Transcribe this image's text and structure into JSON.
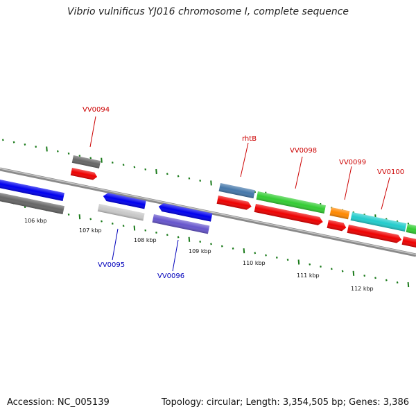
{
  "title": "Vibrio vulnificus YJ016 chromosome I, complete sequence",
  "footer": {
    "accession": "Accession: NC_005139",
    "stats": "Topology: circular; Length: 3,354,505 bp; Genes: 3,386"
  },
  "scale_labels": [
    "106 kbp",
    "107 kbp",
    "108 kbp",
    "109 kbp",
    "110 kbp",
    "111 kbp",
    "112 kbp"
  ],
  "gene_labels": [
    {
      "text": "VV0094",
      "color": "#cc0000"
    },
    {
      "text": "rhtB",
      "color": "#cc0000"
    },
    {
      "text": "VV0098",
      "color": "#cc0000"
    },
    {
      "text": "VV0099",
      "color": "#cc0000"
    },
    {
      "text": "VV0100",
      "color": "#cc0000"
    },
    {
      "text": "VV0095",
      "color": "#0000bb"
    },
    {
      "text": "VV0096",
      "color": "#0000bb"
    }
  ],
  "colors": {
    "backbone": "#8a8a8a",
    "tick": "#1a7a1a",
    "cds": "#ee0000",
    "blue": "#0000ee",
    "green": "#33cc33",
    "cyan": "#22cccc",
    "orange": "#ff8800",
    "steel": "#4477aa",
    "gray": "#666666",
    "light_gray": "#c8c8c8",
    "slate": "#6655cc"
  }
}
